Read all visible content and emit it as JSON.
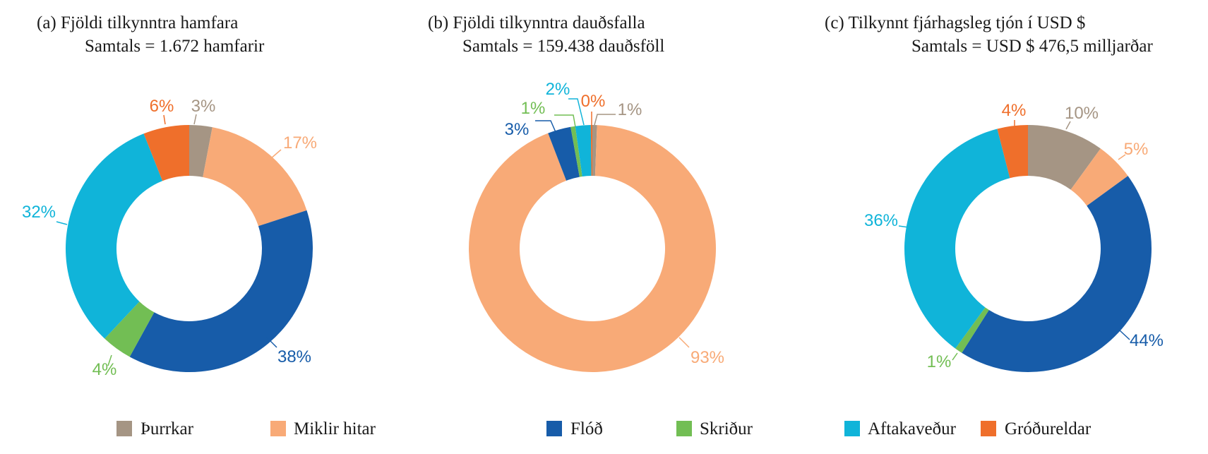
{
  "colors": {
    "Þurrkar": "#a59584",
    "Miklir hitar": "#f8aa77",
    "Flóð": "#175ca9",
    "Skriður": "#72be54",
    "Aftakaveður": "#10b4d9",
    "Gróðureldar": "#ef6f2b"
  },
  "chart_data": [
    {
      "type": "pie",
      "title": "(a) Fjöldi tilkynntra hamfara",
      "subtitle": "Samtals = 1.672 hamfarir",
      "slices": [
        {
          "name": "Þurrkar",
          "value": 3,
          "label": "3%"
        },
        {
          "name": "Miklir hitar",
          "value": 17,
          "label": "17%"
        },
        {
          "name": "Flóð",
          "value": 38,
          "label": "38%"
        },
        {
          "name": "Skriður",
          "value": 4,
          "label": "4%"
        },
        {
          "name": "Aftakaveður",
          "value": 32,
          "label": "32%"
        },
        {
          "name": "Gróðureldar",
          "value": 6,
          "label": "6%"
        }
      ]
    },
    {
      "type": "pie",
      "title": "(b) Fjöldi tilkynntra dauðsfalla",
      "subtitle": "Samtals = 159.438 dauðsföll",
      "slices": [
        {
          "name": "Þurrkar",
          "value": 0.6,
          "label": "1%"
        },
        {
          "name": "Miklir hitar",
          "value": 93,
          "label": "93%"
        },
        {
          "name": "Flóð",
          "value": 3,
          "label": "3%"
        },
        {
          "name": "Skriður",
          "value": 0.6,
          "label": "1%"
        },
        {
          "name": "Aftakaveður",
          "value": 2,
          "label": "2%"
        },
        {
          "name": "Gróðureldar",
          "value": 0.2,
          "label": "0%"
        }
      ]
    },
    {
      "type": "pie",
      "title": "(c) Tilkynnt fjárhagsleg tjón í USD $",
      "subtitle": "Samtals = USD $ 476,5 milljarðar",
      "slices": [
        {
          "name": "Þurrkar",
          "value": 10,
          "label": "10%"
        },
        {
          "name": "Miklir hitar",
          "value": 5,
          "label": "5%"
        },
        {
          "name": "Flóð",
          "value": 44,
          "label": "44%"
        },
        {
          "name": "Skriður",
          "value": 1,
          "label": "1%"
        },
        {
          "name": "Aftakaveður",
          "value": 36,
          "label": "36%"
        },
        {
          "name": "Gróðureldar",
          "value": 4,
          "label": "4%"
        }
      ]
    }
  ],
  "legend": [
    "Þurrkar",
    "Miklir hitar",
    "Flóð",
    "Skriður",
    "Aftakaveður",
    "Gróðureldar"
  ]
}
